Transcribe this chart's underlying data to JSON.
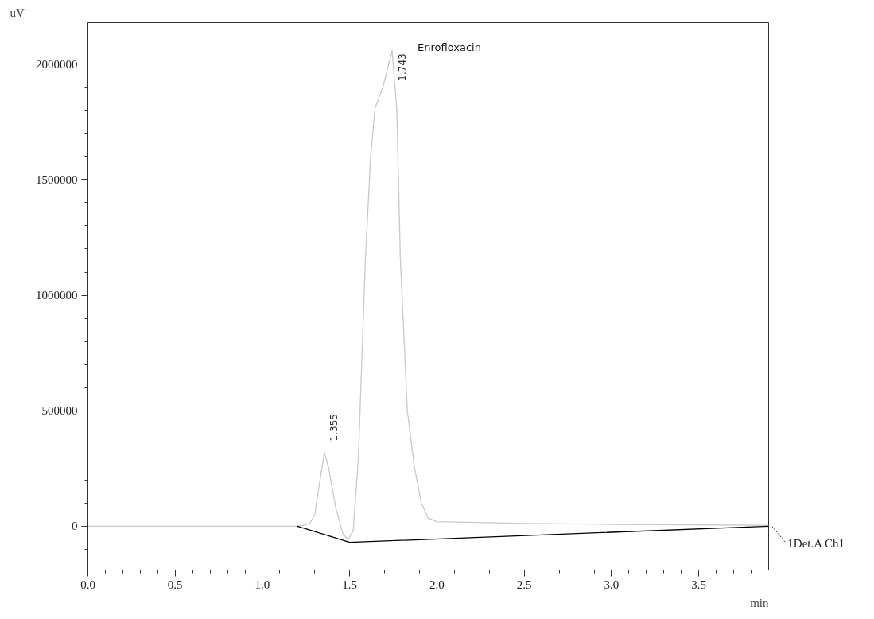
{
  "chart_data": {
    "type": "line",
    "xlabel": "min",
    "ylabel": "uV",
    "xlim": [
      0,
      3.9
    ],
    "ylim": [
      -190000,
      2180000
    ],
    "xticks": [
      {
        "value": 0,
        "label": "0.0"
      },
      {
        "value": 0.5,
        "label": "0.5"
      },
      {
        "value": 1,
        "label": "1.0"
      },
      {
        "value": 1.5,
        "label": "1.5"
      },
      {
        "value": 2,
        "label": "2.0"
      },
      {
        "value": 2.5,
        "label": "2.5"
      },
      {
        "value": 3,
        "label": "3.0"
      },
      {
        "value": 3.5,
        "label": "3.5"
      }
    ],
    "yticks": [
      0,
      500000,
      1000000,
      1500000,
      2000000
    ],
    "grid": false,
    "series": [
      {
        "color": "#c8c8c8",
        "x": [
          0,
          1.2,
          1.27,
          1.3,
          1.33,
          1.355,
          1.38,
          1.42,
          1.46,
          1.49,
          1.52,
          1.55,
          1.59,
          1.62,
          1.645,
          1.69,
          1.743,
          1.77,
          1.79,
          1.83,
          1.87,
          1.91,
          1.95,
          2.0,
          2.5,
          3.0,
          3.9
        ],
        "values": [
          0,
          0,
          10000,
          50000,
          200000,
          320000,
          250000,
          80000,
          -30000,
          -60000,
          -20000,
          300000,
          1160000,
          1600000,
          1810000,
          1900000,
          2060000,
          1800000,
          1160000,
          500000,
          260000,
          100000,
          35000,
          20000,
          12000,
          8000,
          4000
        ]
      },
      {
        "color": "#000000",
        "x": [
          1.2,
          1.5,
          3.9
        ],
        "values": [
          0,
          -70000,
          0
        ]
      }
    ],
    "annotations": [
      {
        "text": "1.355",
        "x": 1.355,
        "y": 320000
      },
      {
        "text": "1.743",
        "x": 1.743,
        "y": 2060000
      },
      {
        "text": "Enrofloxacin",
        "x": 1.743,
        "y": 2060000
      },
      {
        "text": "1Det.A Ch1",
        "x": 3.9,
        "y": 0
      }
    ]
  }
}
